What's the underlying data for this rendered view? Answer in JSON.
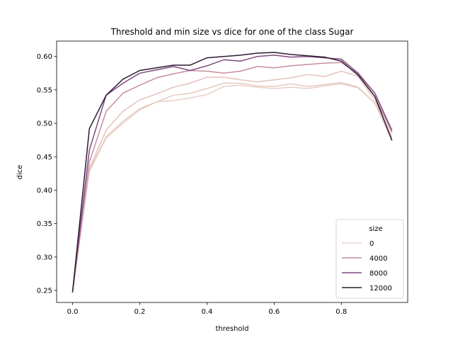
{
  "chart_data": {
    "type": "line",
    "title": "Threshold and min size vs dice for one of the class Sugar",
    "xlabel": "threshold",
    "ylabel": "dice",
    "xlim": [
      -0.0475,
      0.9975
    ],
    "ylim": [
      0.232,
      0.623
    ],
    "x_ticks": [
      0.0,
      0.2,
      0.4,
      0.6,
      0.8
    ],
    "x_tick_labels": [
      "0.0",
      "0.2",
      "0.4",
      "0.6",
      "0.8"
    ],
    "y_ticks": [
      0.25,
      0.3,
      0.35,
      0.4,
      0.45,
      0.5,
      0.55,
      0.6
    ],
    "y_tick_labels": [
      "0.25",
      "0.30",
      "0.35",
      "0.40",
      "0.45",
      "0.50",
      "0.55",
      "0.60"
    ],
    "grid": false,
    "legend": {
      "title": "size",
      "placement": "lower-right",
      "entries": [
        "0",
        "4000",
        "8000",
        "12000"
      ]
    },
    "x": [
      0.0,
      0.05,
      0.1,
      0.15,
      0.2,
      0.25,
      0.3,
      0.35,
      0.4,
      0.45,
      0.5,
      0.55,
      0.6,
      0.65,
      0.7,
      0.75,
      0.8,
      0.85,
      0.9,
      0.95
    ],
    "series": [
      {
        "color": "#e8cfc6",
        "values": [
          0.248,
          0.428,
          0.478,
          0.5,
          0.52,
          0.532,
          0.534,
          0.538,
          0.543,
          0.555,
          0.557,
          0.554,
          0.552,
          0.554,
          0.552,
          0.556,
          0.559,
          0.553,
          0.53,
          0.475
        ]
      },
      {
        "color": "#e6c9c0",
        "values": [
          0.248,
          0.43,
          0.48,
          0.503,
          0.522,
          0.532,
          0.542,
          0.545,
          0.552,
          0.56,
          0.56,
          0.556,
          0.555,
          0.559,
          0.555,
          0.558,
          0.561,
          0.554,
          0.53,
          0.477
        ]
      },
      {
        "color": "#e4c1bb",
        "values": [
          0.248,
          0.432,
          0.49,
          0.518,
          0.535,
          0.544,
          0.554,
          0.56,
          0.569,
          0.569,
          0.565,
          0.562,
          0.565,
          0.568,
          0.573,
          0.57,
          0.578,
          0.57,
          0.535,
          0.48
        ]
      },
      {
        "color": "#c98da1",
        "values": [
          0.248,
          0.442,
          0.518,
          0.545,
          0.557,
          0.568,
          0.574,
          0.579,
          0.578,
          0.575,
          0.578,
          0.585,
          0.583,
          0.586,
          0.588,
          0.59,
          0.591,
          0.574,
          0.54,
          0.487
        ]
      },
      {
        "color": "#7d4a7e",
        "values": [
          0.248,
          0.46,
          0.542,
          0.56,
          0.575,
          0.58,
          0.585,
          0.579,
          0.586,
          0.595,
          0.593,
          0.6,
          0.602,
          0.599,
          0.6,
          0.598,
          0.596,
          0.575,
          0.545,
          0.49
        ]
      },
      {
        "color": "#2d1b34",
        "values": [
          0.248,
          0.492,
          0.542,
          0.566,
          0.579,
          0.583,
          0.587,
          0.587,
          0.598,
          0.6,
          0.602,
          0.605,
          0.606,
          0.603,
          0.601,
          0.599,
          0.593,
          0.572,
          0.54,
          0.475
        ]
      }
    ],
    "legend_colors": [
      "#ebd2ca",
      "#c98da1",
      "#7d4a7e",
      "#2d1b34"
    ]
  }
}
